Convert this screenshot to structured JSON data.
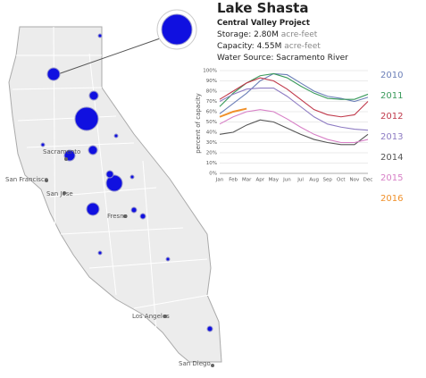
{
  "info": {
    "title": "Lake Shasta",
    "project": "Central Valley Project",
    "storage": "Storage: 2.80M",
    "storage_unit": "acre-feet",
    "capacity": "Capacity: 4.55M",
    "capacity_unit": "acre-feet",
    "source": "Water Source: Sacramento River"
  },
  "map": {
    "cities": [
      "Sacramento",
      "San Francisco",
      "San Jose",
      "Fresno",
      "Los Angeles",
      "San Diego"
    ]
  },
  "chart_data": {
    "type": "line",
    "y_label": "percent of capacity",
    "categories": [
      "Jan",
      "Feb",
      "Mar",
      "Apr",
      "May",
      "Jun",
      "Jul",
      "Aug",
      "Sep",
      "Oct",
      "Nov",
      "Dec"
    ],
    "ylim": [
      0,
      100
    ],
    "yticks": [
      {
        "value": 0,
        "label": "0%"
      },
      {
        "value": 10,
        "label": "10%"
      },
      {
        "value": 20,
        "label": "20%"
      },
      {
        "value": 30,
        "label": "30%"
      },
      {
        "value": 40,
        "label": "40%"
      },
      {
        "value": 50,
        "label": "50%"
      },
      {
        "value": 60,
        "label": "60%"
      },
      {
        "value": 70,
        "label": "70%"
      },
      {
        "value": 80,
        "label": "80%"
      },
      {
        "value": 90,
        "label": "90%"
      },
      {
        "value": 100,
        "label": "100%"
      }
    ],
    "grid": true,
    "series": [
      {
        "name": "2010",
        "color": "#6b7fb8",
        "values": [
          58,
          68,
          78,
          90,
          97,
          96,
          88,
          80,
          75,
          73,
          70,
          74
        ]
      },
      {
        "name": "2011",
        "color": "#3a9a5b",
        "values": [
          65,
          78,
          88,
          95,
          97,
          93,
          85,
          78,
          73,
          72,
          72,
          77
        ]
      },
      {
        "name": "2012",
        "color": "#c0394b",
        "values": [
          72,
          80,
          88,
          93,
          90,
          82,
          72,
          62,
          57,
          55,
          57,
          70
        ]
      },
      {
        "name": "2013",
        "color": "#8e7cc3",
        "values": [
          70,
          77,
          82,
          83,
          83,
          75,
          65,
          55,
          48,
          45,
          43,
          42
        ]
      },
      {
        "name": "2014",
        "color": "#555555",
        "values": [
          38,
          40,
          47,
          52,
          50,
          44,
          38,
          33,
          30,
          28,
          28,
          38
        ]
      },
      {
        "name": "2015",
        "color": "#d77fc6",
        "values": [
          48,
          55,
          60,
          62,
          60,
          53,
          45,
          38,
          33,
          30,
          30,
          33
        ]
      },
      {
        "name": "2016",
        "color": "#f0902a",
        "values": [
          55,
          60,
          63,
          null,
          null,
          null,
          null,
          null,
          null,
          null,
          null,
          null
        ]
      }
    ]
  }
}
